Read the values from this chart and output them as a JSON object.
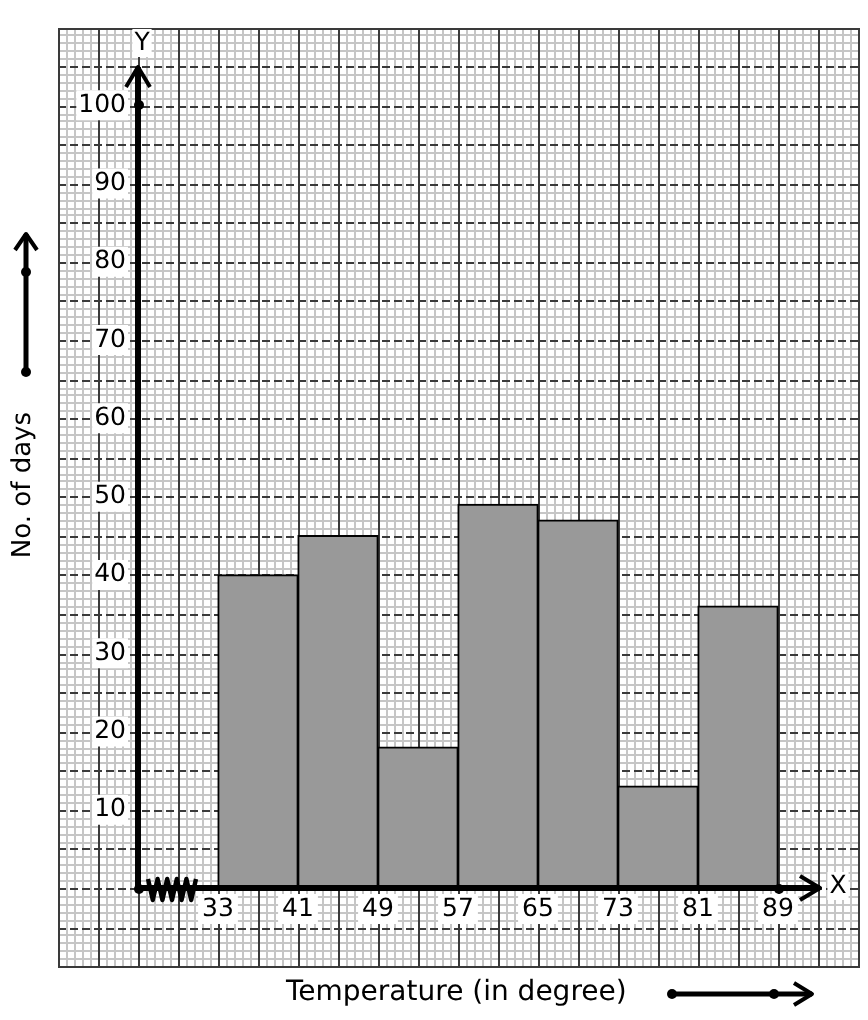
{
  "chart_data": {
    "type": "histogram",
    "xlabel": "Temperature (in degree)",
    "ylabel": "No. of days",
    "bins": [
      33,
      41,
      49,
      57,
      65,
      73,
      81,
      89
    ],
    "values": [
      40,
      45,
      18,
      49,
      47,
      13,
      36
    ],
    "color": "#999999",
    "xlim": [
      25,
      97
    ],
    "ylim": [
      0,
      110
    ],
    "xticks": [
      33,
      41,
      49,
      57,
      65,
      73,
      81,
      89
    ],
    "yticks": [
      10,
      20,
      30,
      40,
      50,
      60,
      70,
      80,
      90,
      100
    ],
    "grid": true,
    "annotations": [
      "Y",
      "X"
    ]
  }
}
